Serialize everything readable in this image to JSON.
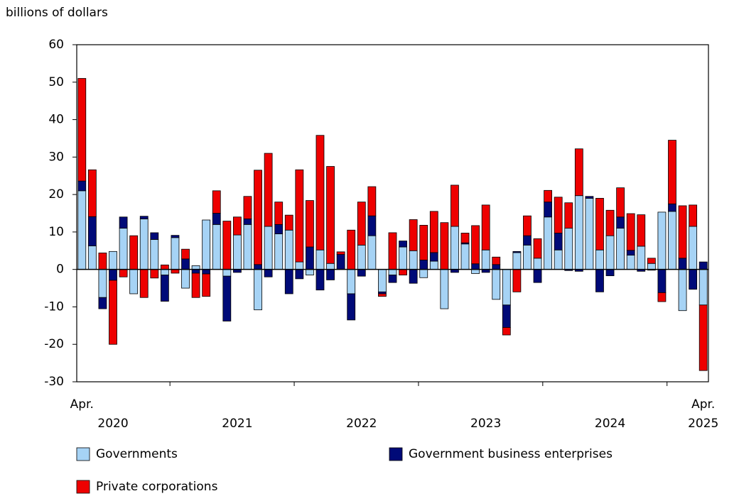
{
  "chart_data": {
    "type": "stacked-bar",
    "y_axis_label": "billions of dollars",
    "categories": [
      "Apr.",
      null,
      null,
      null,
      null,
      null,
      null,
      null,
      null,
      null,
      null,
      null,
      null,
      null,
      null,
      null,
      null,
      null,
      null,
      null,
      null,
      null,
      null,
      null,
      null,
      null,
      null,
      null,
      null,
      null,
      null,
      null,
      null,
      null,
      null,
      null,
      null,
      null,
      null,
      null,
      null,
      null,
      null,
      null,
      null,
      null,
      null,
      null,
      null,
      null,
      null,
      null,
      null,
      null,
      null,
      null,
      null,
      null,
      null,
      null,
      "Apr."
    ],
    "year_labels": [
      "2020",
      "2021",
      "2022",
      "2023",
      "2024",
      "2025"
    ],
    "series": [
      {
        "name": "Governments",
        "color": "#a6d3f5",
        "values": [
          21,
          6.3,
          -7.5,
          4.8,
          11,
          -6.5,
          13.5,
          8,
          -1.5,
          8.5,
          -5,
          1,
          13.2,
          12,
          -1.8,
          9.2,
          12,
          -10.8,
          11.5,
          9.5,
          10.5,
          2,
          -1.5,
          5.2,
          1.6,
          0,
          -6.5,
          6.5,
          9,
          -6,
          -1.5,
          6,
          5,
          -2.2,
          2.2,
          -10.5,
          11.5,
          6.8,
          -1.1,
          5.2,
          -8,
          -9.5,
          4.5,
          6.5,
          3,
          14,
          5.2,
          11,
          19.7,
          19,
          5.2,
          9,
          11,
          3.8,
          6.2,
          1.6,
          15.3,
          15.5,
          -11,
          11.5,
          -9.5
        ]
      },
      {
        "name": "Government business enterprises",
        "color": "#000a78",
        "values": [
          2.6,
          7.8,
          -3,
          -2.9,
          3,
          0,
          0.7,
          1.8,
          -7,
          0.6,
          2.8,
          -1,
          -1.2,
          3,
          -12,
          -0.8,
          1.5,
          1.3,
          -2,
          2.5,
          -6.5,
          -2.5,
          6,
          -5.5,
          -2.8,
          4,
          -7,
          -1.8,
          5.3,
          -0.5,
          -2,
          1.6,
          -3.7,
          2.5,
          2.3,
          0,
          -0.8,
          0.3,
          1.5,
          -0.8,
          1.3,
          -6,
          0.3,
          2.5,
          -3.5,
          4,
          4.5,
          -0.3,
          -0.5,
          0.5,
          -6,
          -1.7,
          3,
          1.3,
          -0.5,
          -0.2,
          -6.2,
          2,
          3,
          -5.3,
          2
        ]
      },
      {
        "name": "Private corporations",
        "color": "#ee0000",
        "values": [
          27.4,
          12.5,
          4.4,
          -17.1,
          -2,
          9,
          -7.5,
          -2.3,
          1.2,
          -1,
          2.6,
          -6.5,
          -6,
          6,
          12.9,
          4.8,
          6,
          25.2,
          19.5,
          6,
          4,
          24.6,
          12.4,
          30.6,
          25.9,
          0.7,
          10.5,
          11.5,
          7.8,
          -0.7,
          9.8,
          -1.5,
          8.3,
          9.3,
          11,
          12.5,
          11,
          2.6,
          10.2,
          12,
          2,
          -2,
          -6,
          5.3,
          5.2,
          3.1,
          9.6,
          6.8,
          12.5,
          0,
          13.8,
          6.8,
          7.8,
          9.8,
          8.4,
          1.4,
          -2.4,
          17,
          14,
          5.7,
          -17.5
        ]
      }
    ],
    "ylim": [
      -30,
      60
    ],
    "yticks": [
      -30,
      -20,
      -10,
      0,
      10,
      20,
      30,
      40,
      50,
      60
    ]
  }
}
